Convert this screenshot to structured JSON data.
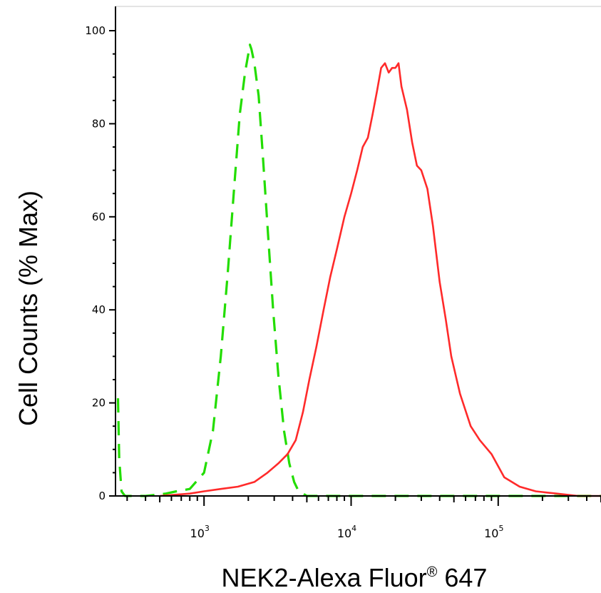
{
  "chart_data": {
    "type": "line",
    "title": "",
    "xlabel": "NEK2-Alexa Fluor",
    "xlabel_mark": "®",
    "xlabel_suffix": " 647",
    "ylabel": "Cell Counts (% Max)",
    "x_scale": "log",
    "xlim": [
      250,
      500000
    ],
    "ylim": [
      0,
      100
    ],
    "grid": false,
    "legend": "none",
    "yticks": [
      {
        "value": 0,
        "label": "0"
      },
      {
        "value": 20,
        "label": "20"
      },
      {
        "value": 40,
        "label": "40"
      },
      {
        "value": 60,
        "label": "60"
      },
      {
        "value": 80,
        "label": "80"
      },
      {
        "value": 100,
        "label": "100"
      }
    ],
    "xticks": [
      {
        "value": 1000,
        "base": "10",
        "exp": "3"
      },
      {
        "value": 10000,
        "base": "10",
        "exp": "4"
      },
      {
        "value": 100000,
        "base": "10",
        "exp": "5"
      }
    ],
    "series": [
      {
        "color": "#22dd00",
        "style": "dashed",
        "x": [
          260,
          265,
          275,
          290,
          310,
          400,
          550,
          650,
          800,
          1000,
          1150,
          1300,
          1450,
          1600,
          1750,
          1900,
          2000,
          2050,
          2100,
          2200,
          2350,
          2500,
          2700,
          2950,
          3200,
          3500,
          3800,
          4100,
          4400,
          4700,
          5000,
          5400,
          6000,
          7000,
          10000,
          30000,
          100000,
          300000,
          500000
        ],
        "y": [
          21,
          8,
          1,
          0,
          0,
          0,
          0.5,
          1,
          1.5,
          5,
          14,
          30,
          48,
          66,
          82,
          91,
          95,
          97,
          96,
          93,
          86,
          74,
          58,
          40,
          26,
          14,
          7,
          3,
          1,
          0.5,
          0,
          0,
          0,
          0,
          0,
          0,
          0,
          0,
          0
        ]
      },
      {
        "color": "#ff2a2a",
        "style": "solid",
        "x": [
          500,
          800,
          1000,
          1300,
          1700,
          2200,
          2700,
          3200,
          3700,
          4200,
          4700,
          5200,
          5800,
          6500,
          7200,
          8000,
          9000,
          10000,
          11000,
          12000,
          13000,
          14000,
          15000,
          16000,
          17000,
          18000,
          19000,
          20000,
          21000,
          22000,
          24000,
          26000,
          28000,
          30000,
          33000,
          36000,
          40000,
          44000,
          48000,
          55000,
          65000,
          75000,
          90000,
          110000,
          140000,
          180000,
          250000,
          350000,
          500000
        ],
        "y": [
          0,
          0.5,
          1,
          1.5,
          2,
          3,
          5,
          7,
          9,
          12,
          18,
          25,
          32,
          40,
          47,
          53,
          60,
          65,
          70,
          75,
          77,
          82,
          87,
          92,
          93,
          91,
          92,
          92,
          93,
          88,
          83,
          76,
          71,
          70,
          66,
          58,
          46,
          38,
          30,
          22,
          15,
          12,
          9,
          4,
          2,
          1,
          0.5,
          0,
          0
        ]
      }
    ]
  }
}
